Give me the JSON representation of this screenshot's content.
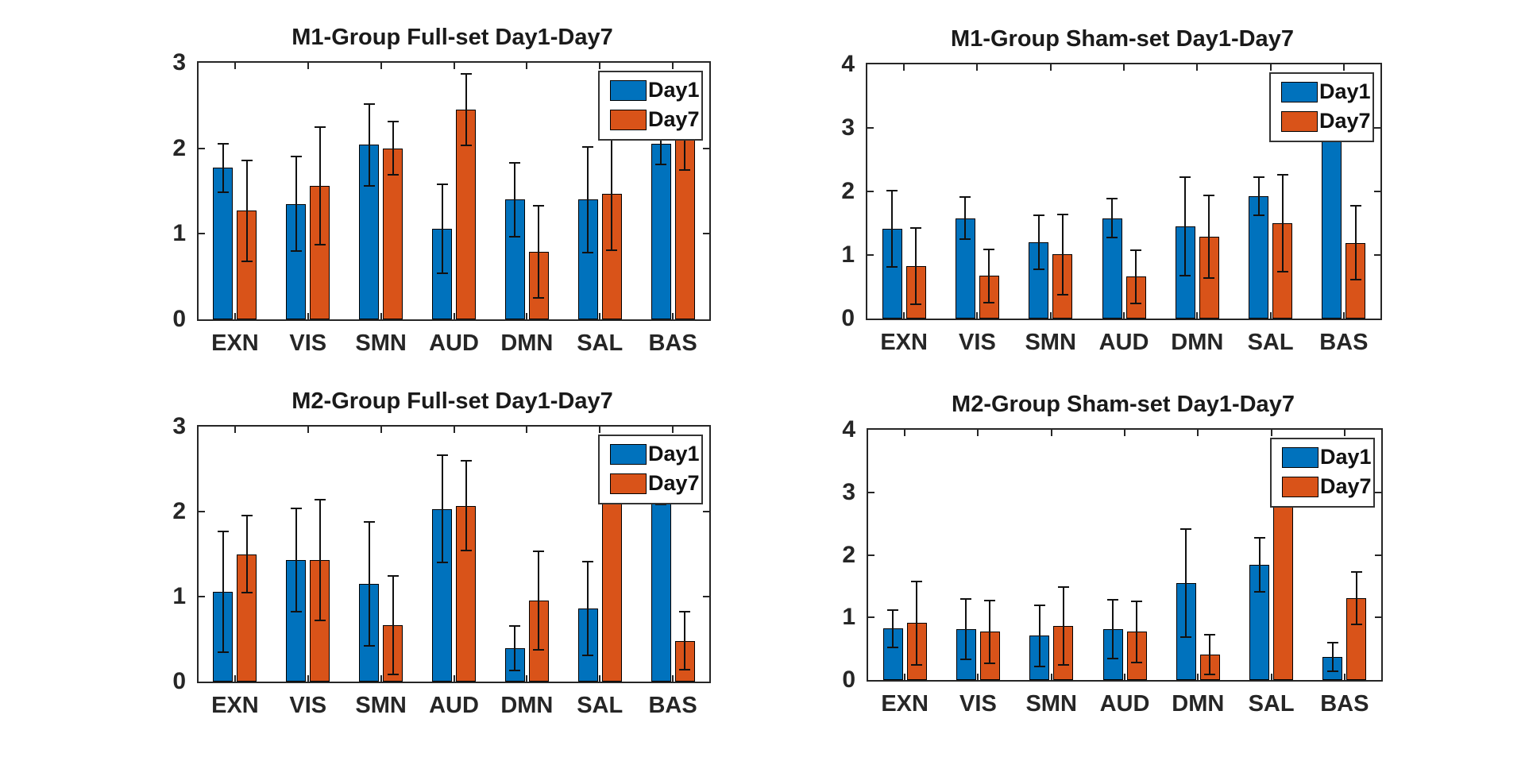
{
  "figure": {
    "background": "#ffffff",
    "text_color": "#262626"
  },
  "colors": {
    "day1": "#0072BD",
    "day7": "#D95319",
    "axis": "#262626",
    "errorbar": "#111111"
  },
  "legend": {
    "items": [
      {
        "label": "Day1",
        "color": "#0072BD"
      },
      {
        "label": "Day7",
        "color": "#D95319"
      }
    ],
    "position": "top-right"
  },
  "chart_data": [
    {
      "type": "bar",
      "title": "M1-Group Full-set Day1-Day7",
      "categories": [
        "EXN",
        "VIS",
        "SMN",
        "AUD",
        "DMN",
        "SAL",
        "BAS"
      ],
      "xlabel": "",
      "ylabel": "",
      "ylim": [
        0,
        3
      ],
      "yticks": [
        0,
        1,
        2,
        3
      ],
      "grid": false,
      "legend_position": "top-right",
      "series": [
        {
          "name": "Day1",
          "color": "#0072BD",
          "values": [
            1.77,
            1.35,
            2.04,
            1.06,
            1.4,
            1.4,
            2.05
          ],
          "errors": [
            0.28,
            0.55,
            0.48,
            0.52,
            0.43,
            0.62,
            0.24
          ]
        },
        {
          "name": "Day7",
          "color": "#D95319",
          "values": [
            1.27,
            1.56,
            2.0,
            2.45,
            0.79,
            1.47,
            2.2
          ],
          "errors": [
            0.59,
            0.69,
            0.31,
            0.42,
            0.54,
            0.66,
            0.45
          ]
        }
      ]
    },
    {
      "type": "bar",
      "title": "M1-Group Sham-set Day1-Day7",
      "categories": [
        "EXN",
        "VIS",
        "SMN",
        "AUD",
        "DMN",
        "SAL",
        "BAS"
      ],
      "xlabel": "",
      "ylabel": "",
      "ylim": [
        0,
        4
      ],
      "yticks": [
        0,
        1,
        2,
        3,
        4
      ],
      "grid": false,
      "legend_position": "top-right",
      "series": [
        {
          "name": "Day1",
          "color": "#0072BD",
          "values": [
            1.41,
            1.58,
            1.2,
            1.58,
            1.45,
            1.92,
            3.1
          ],
          "errors": [
            0.6,
            0.33,
            0.43,
            0.31,
            0.78,
            0.3,
            0.3
          ]
        },
        {
          "name": "Day7",
          "color": "#D95319",
          "values": [
            0.82,
            0.67,
            1.01,
            0.66,
            1.29,
            1.5,
            1.19
          ],
          "errors": [
            0.6,
            0.42,
            0.63,
            0.42,
            0.65,
            0.76,
            0.58
          ]
        }
      ]
    },
    {
      "type": "bar",
      "title": "M2-Group Full-set Day1-Day7",
      "categories": [
        "EXN",
        "VIS",
        "SMN",
        "AUD",
        "DMN",
        "SAL",
        "BAS"
      ],
      "xlabel": "",
      "ylabel": "",
      "ylim": [
        0,
        3
      ],
      "yticks": [
        0,
        1,
        2,
        3
      ],
      "grid": false,
      "legend_position": "top-right",
      "series": [
        {
          "name": "Day1",
          "color": "#0072BD",
          "values": [
            1.06,
            1.43,
            1.15,
            2.03,
            0.39,
            0.86,
            2.25
          ],
          "errors": [
            0.71,
            0.61,
            0.73,
            0.63,
            0.26,
            0.55,
            0.17
          ]
        },
        {
          "name": "Day7",
          "color": "#D95319",
          "values": [
            1.5,
            1.43,
            0.66,
            2.07,
            0.95,
            2.35,
            0.48
          ],
          "errors": [
            0.45,
            0.71,
            0.58,
            0.53,
            0.58,
            0.2,
            0.34
          ]
        }
      ]
    },
    {
      "type": "bar",
      "title": "M2-Group Sham-set Day1-Day7",
      "categories": [
        "EXN",
        "VIS",
        "SMN",
        "AUD",
        "DMN",
        "SAL",
        "BAS"
      ],
      "xlabel": "",
      "ylabel": "",
      "ylim": [
        0,
        4
      ],
      "yticks": [
        0,
        1,
        2,
        3,
        4
      ],
      "grid": false,
      "legend_position": "top-right",
      "series": [
        {
          "name": "Day1",
          "color": "#0072BD",
          "values": [
            0.82,
            0.81,
            0.71,
            0.81,
            1.55,
            1.84,
            0.37
          ],
          "errors": [
            0.3,
            0.48,
            0.49,
            0.47,
            0.86,
            0.43,
            0.23
          ]
        },
        {
          "name": "Day7",
          "color": "#D95319",
          "values": [
            0.91,
            0.77,
            0.86,
            0.77,
            0.41,
            3.15,
            1.31
          ],
          "errors": [
            0.67,
            0.5,
            0.62,
            0.49,
            0.32,
            0.38,
            0.42
          ]
        }
      ]
    }
  ]
}
